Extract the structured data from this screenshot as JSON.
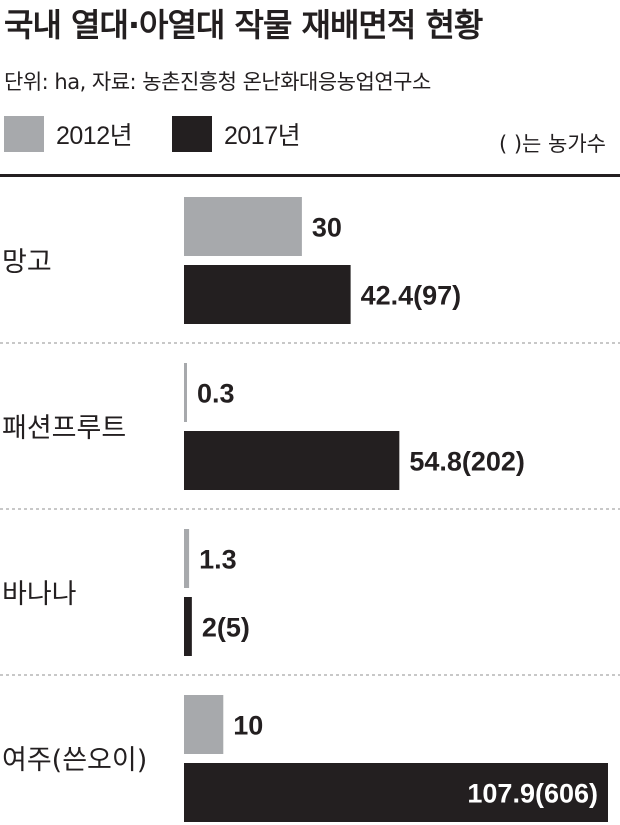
{
  "chart_data": {
    "type": "bar",
    "orientation": "horizontal",
    "title": "국내 열대·아열대 작물 재배면적 현황",
    "subtitle": "단위: ha, 자료: 농촌진흥청 온난화대응농업연구소",
    "note": "( )는 농가수",
    "categories": [
      "망고",
      "패션프루트",
      "바나나",
      "여주(쓴오이)"
    ],
    "series": [
      {
        "name": "2012년",
        "color": "#a7a9ac",
        "values": [
          30,
          0.3,
          1.3,
          10
        ],
        "labels": [
          "30",
          "0.3",
          "1.3",
          "10"
        ]
      },
      {
        "name": "2017년",
        "color": "#231f20",
        "values": [
          42.4,
          54.8,
          2,
          107.9
        ],
        "labels": [
          "42.4(97)",
          "54.8(202)",
          "2(5)",
          "107.9(606)"
        ]
      }
    ],
    "farm_counts_2017": [
      97,
      202,
      5,
      606
    ],
    "grid": false,
    "legend_position": "top-left"
  }
}
